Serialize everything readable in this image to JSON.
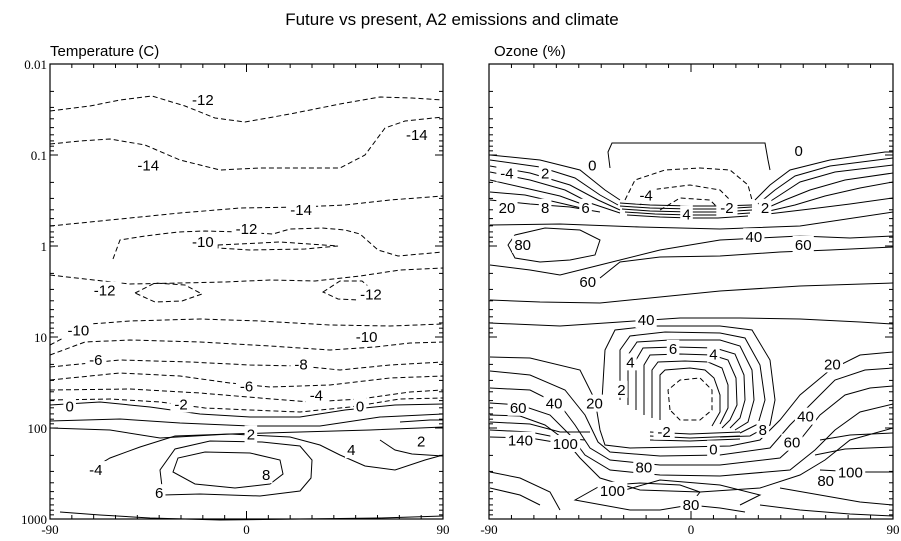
{
  "figure_title": "Future vs present, A2 emissions and climate",
  "chart_data": [
    {
      "type": "contour",
      "title": "Temperature (C)",
      "xlabel": "",
      "ylabel": "",
      "x_ticks": [
        "-90",
        "0",
        "90"
      ],
      "y_ticks": [
        "0.01",
        "0.1",
        "1",
        "10",
        "100",
        "1000"
      ],
      "xlim": [
        -90,
        90
      ],
      "ylim": [
        1000,
        0.01
      ],
      "y_scale": "log",
      "negative_contours_dashed": true,
      "contour_labels": [
        {
          "value": -12,
          "x": -20,
          "y": 0.025
        },
        {
          "value": -14,
          "x": 78,
          "y": 0.06
        },
        {
          "value": -14,
          "x": -45,
          "y": 0.13
        },
        {
          "value": -14,
          "x": 25,
          "y": 0.4
        },
        {
          "value": -12,
          "x": 0,
          "y": 0.65
        },
        {
          "value": -10,
          "x": -20,
          "y": 0.9
        },
        {
          "value": -12,
          "x": -65,
          "y": 3.1
        },
        {
          "value": -12,
          "x": 57,
          "y": 3.4
        },
        {
          "value": -10,
          "x": -77,
          "y": 8.5
        },
        {
          "value": -10,
          "x": 55,
          "y": 10
        },
        {
          "value": -6,
          "x": -69,
          "y": 18
        },
        {
          "value": -8,
          "x": 25,
          "y": 20
        },
        {
          "value": -6,
          "x": 0,
          "y": 35
        },
        {
          "value": -4,
          "x": 32,
          "y": 44
        },
        {
          "value": -2,
          "x": -30,
          "y": 55
        },
        {
          "value": 0,
          "x": -81,
          "y": 58
        },
        {
          "value": 0,
          "x": 52,
          "y": 58
        },
        {
          "value": 2,
          "x": 2,
          "y": 118
        },
        {
          "value": 4,
          "x": 48,
          "y": 175
        },
        {
          "value": 2,
          "x": 80,
          "y": 140
        },
        {
          "value": -4,
          "x": -69,
          "y": 290
        },
        {
          "value": 8,
          "x": 9,
          "y": 330
        },
        {
          "value": 6,
          "x": -40,
          "y": 520
        }
      ]
    },
    {
      "type": "contour",
      "title": "Ozone (%)",
      "xlabel": "",
      "ylabel": "",
      "x_ticks": [
        "-90",
        "0",
        "90"
      ],
      "y_ticks": [],
      "xlim": [
        -90,
        90
      ],
      "ylim": [
        1000,
        0.01
      ],
      "y_scale": "log",
      "negative_contours_dashed": true,
      "contour_labels": [
        {
          "value": 0,
          "x": -44,
          "y": 0.13
        },
        {
          "value": 0,
          "x": 48,
          "y": 0.09
        },
        {
          "value": -4,
          "x": -82,
          "y": 0.16
        },
        {
          "value": 2,
          "x": -65,
          "y": 0.16
        },
        {
          "value": 20,
          "x": -82,
          "y": 0.38
        },
        {
          "value": 8,
          "x": -65,
          "y": 0.38
        },
        {
          "value": 6,
          "x": -47,
          "y": 0.38
        },
        {
          "value": -4,
          "x": -20,
          "y": 0.28
        },
        {
          "value": 4,
          "x": -2,
          "y": 0.45
        },
        {
          "value": -2,
          "x": 16,
          "y": 0.38
        },
        {
          "value": 2,
          "x": 33,
          "y": 0.38
        },
        {
          "value": 80,
          "x": -75,
          "y": 0.97
        },
        {
          "value": 40,
          "x": 28,
          "y": 0.8
        },
        {
          "value": 60,
          "x": 50,
          "y": 0.97
        },
        {
          "value": 60,
          "x": -46,
          "y": 2.5
        },
        {
          "value": 40,
          "x": -20,
          "y": 6.5
        },
        {
          "value": 6,
          "x": -8,
          "y": 13.5
        },
        {
          "value": 4,
          "x": 10,
          "y": 15.5
        },
        {
          "value": 4,
          "x": -27,
          "y": 19
        },
        {
          "value": 20,
          "x": 63,
          "y": 20
        },
        {
          "value": 2,
          "x": -31,
          "y": 38
        },
        {
          "value": 60,
          "x": -77,
          "y": 60
        },
        {
          "value": 40,
          "x": -61,
          "y": 54
        },
        {
          "value": 20,
          "x": -43,
          "y": 54
        },
        {
          "value": 40,
          "x": 51,
          "y": 75
        },
        {
          "value": 8,
          "x": 32,
          "y": 105
        },
        {
          "value": -2,
          "x": -12,
          "y": 110
        },
        {
          "value": 140,
          "x": -76,
          "y": 138
        },
        {
          "value": 100,
          "x": -56,
          "y": 150
        },
        {
          "value": 0,
          "x": 10,
          "y": 172
        },
        {
          "value": 60,
          "x": 45,
          "y": 145
        },
        {
          "value": 80,
          "x": -21,
          "y": 270
        },
        {
          "value": 100,
          "x": 71,
          "y": 310
        },
        {
          "value": 80,
          "x": 60,
          "y": 380
        },
        {
          "value": 100,
          "x": -35,
          "y": 490
        },
        {
          "value": 80,
          "x": 0,
          "y": 700
        }
      ]
    }
  ]
}
